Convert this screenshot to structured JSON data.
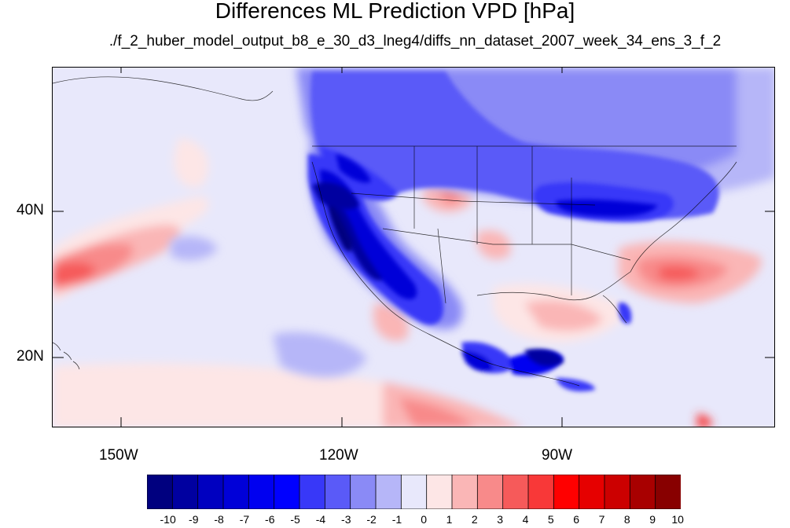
{
  "title": "Differences ML Prediction VPD [hPa]",
  "subtitle": "./f_2_huber_model_output_b8_e_30_d3_lneg4/diffs_nn_dataset_2007_week_34_ens_3_f_2",
  "map": {
    "latitude_labels": [
      "40N",
      "20N"
    ],
    "longitude_labels": [
      "150W",
      "120W",
      "90W"
    ],
    "background_color": "#e8e8fb"
  },
  "colorbar": {
    "labels": [
      "-10",
      "-9",
      "-8",
      "-7",
      "-6",
      "-5",
      "-4",
      "-3",
      "-2",
      "-1",
      "0",
      "1",
      "2",
      "3",
      "4",
      "5",
      "6",
      "7",
      "8",
      "9",
      "10"
    ],
    "colors": [
      "#00007f",
      "#0000a0",
      "#0000c0",
      "#0000d8",
      "#0000f0",
      "#0000ff",
      "#3838f8",
      "#5a5af8",
      "#8a8af6",
      "#b6b6f8",
      "#e8e8fb",
      "#fde6e6",
      "#fab6b6",
      "#f88a8a",
      "#f65a5a",
      "#f83838",
      "#ff0000",
      "#e60000",
      "#cc0000",
      "#a80000",
      "#880000"
    ]
  }
}
